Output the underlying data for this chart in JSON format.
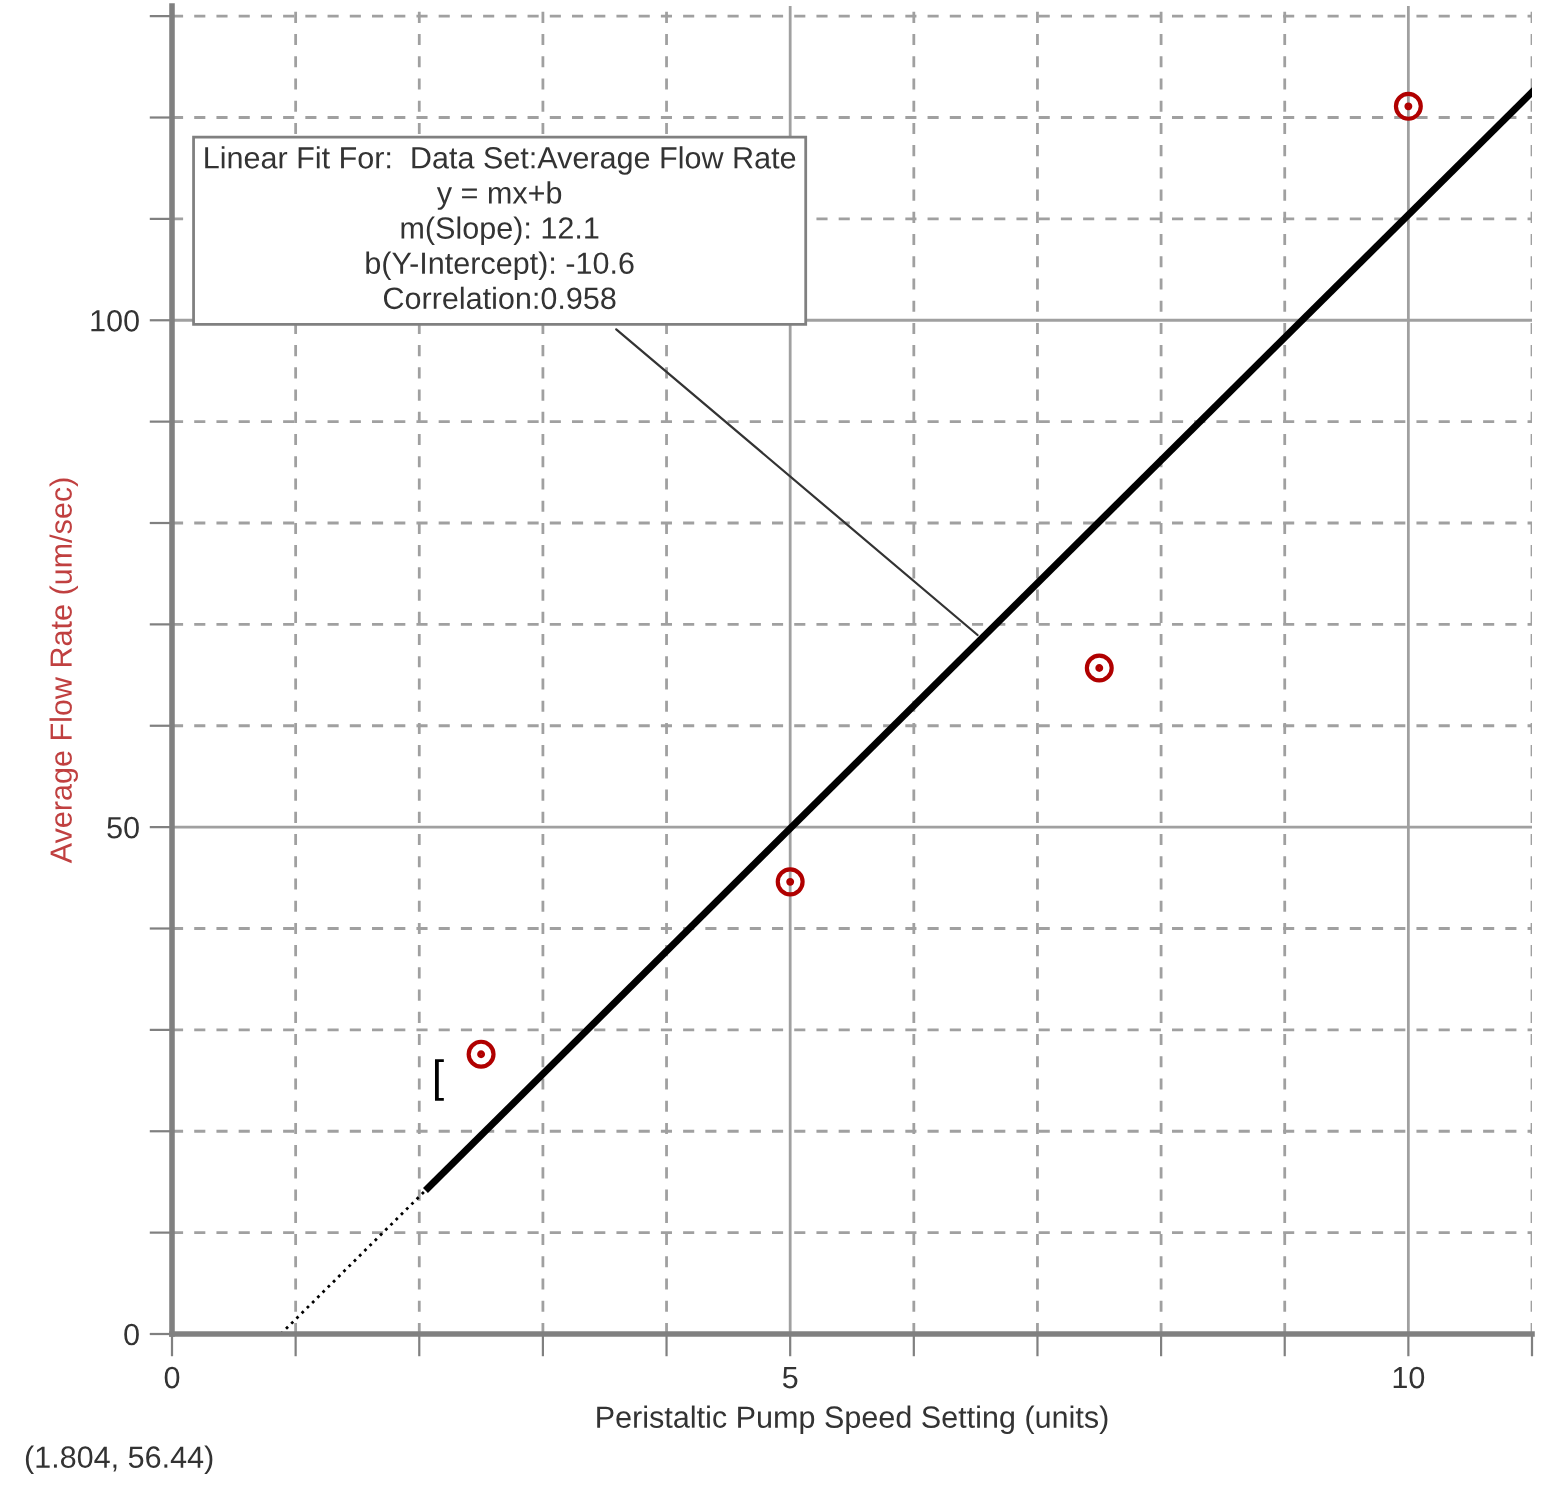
{
  "chart_data": {
    "type": "scatter",
    "xlabel": "Peristaltic Pump Speed Setting (units)",
    "ylabel": "Average Flow Rate (um/sec)",
    "xlim": [
      0,
      11
    ],
    "ylim": [
      0,
      131
    ],
    "xticks": [
      0,
      {
        "value": 1,
        "label": null
      },
      {
        "value": 2,
        "label": null
      },
      {
        "value": 3,
        "label": null
      },
      {
        "value": 4,
        "label": null
      },
      5,
      {
        "value": 6,
        "label": null
      },
      {
        "value": 7,
        "label": null
      },
      {
        "value": 8,
        "label": null
      },
      {
        "value": 9,
        "label": null
      },
      10,
      {
        "value": 11,
        "label": null
      }
    ],
    "yticks": [
      0,
      {
        "value": 10,
        "label": null
      },
      {
        "value": 20,
        "label": null
      },
      {
        "value": 30,
        "label": null
      },
      {
        "value": 40,
        "label": null
      },
      50,
      {
        "value": 60,
        "label": null
      },
      {
        "value": 70,
        "label": null
      },
      {
        "value": 80,
        "label": null
      },
      {
        "value": 90,
        "label": null
      },
      100,
      {
        "value": 110,
        "label": null
      },
      {
        "value": 120,
        "label": null
      },
      {
        "value": 130,
        "label": null
      }
    ],
    "grid": true,
    "marker": "circle",
    "series": [
      {
        "color": "#b00000",
        "x": [
          2.5,
          5,
          7.5,
          10
        ],
        "values": [
          27.6,
          44.6,
          65.7,
          121.1
        ]
      },
      {
        "type": "line",
        "color": "#000000",
        "line_style": "solid",
        "marker": "none",
        "x": [
          2.07,
          11
        ],
        "values": [
          14.4,
          122.5
        ]
      },
      {
        "type": "line",
        "color": "#000000",
        "line_style": "dotted",
        "marker": "none",
        "x": [
          0.88,
          2.07
        ],
        "values": [
          0,
          14.4
        ]
      }
    ],
    "annotations": [
      {
        "text": "Linear Fit For:  Data Set:Average Flow Rate\ny = mx+b\nm(Slope): 12.1\nb(Y-Intercept): -10.6\nCorrelation:0.958",
        "x": 6.55,
        "y": 68.6
      },
      "[",
      "(1.804, 56.44)"
    ]
  }
}
